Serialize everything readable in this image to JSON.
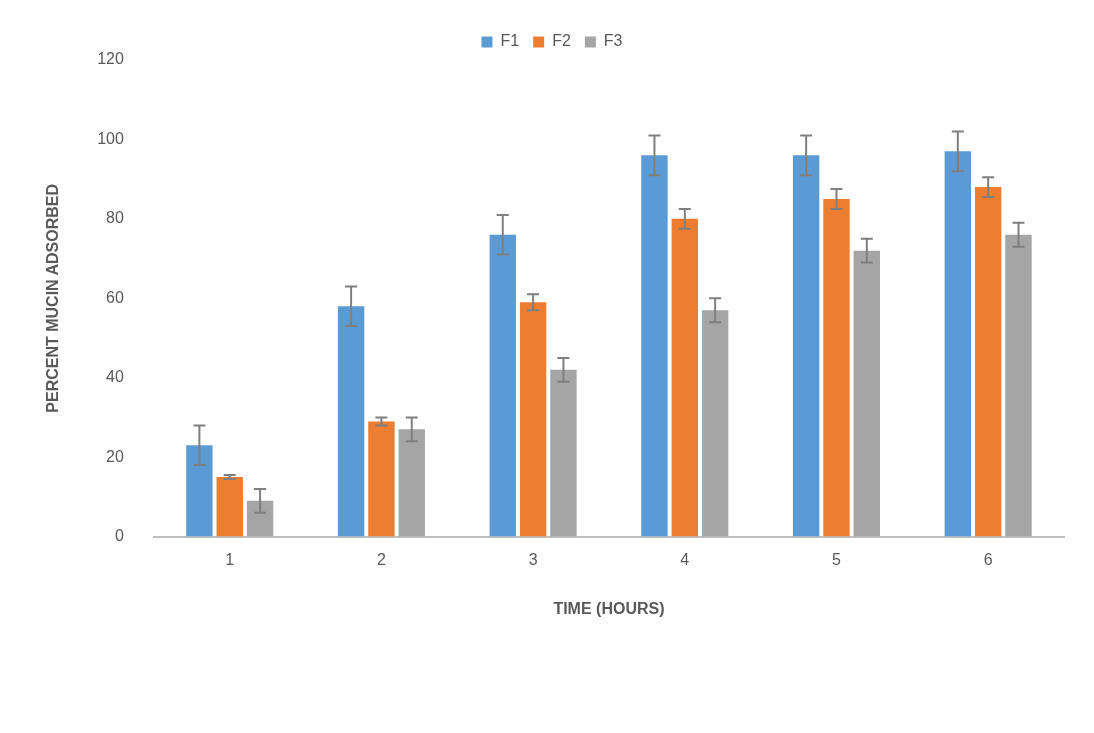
{
  "chart_data": {
    "type": "bar",
    "xlabel": "TIME (HOURS)",
    "ylabel": "PERCENT MUCIN ADSORBED",
    "categories": [
      "1",
      "2",
      "3",
      "4",
      "5",
      "6"
    ],
    "series": [
      {
        "name": "F1",
        "color": "#5b9bd5",
        "values": [
          23,
          58,
          76,
          96,
          96,
          97
        ],
        "errors": [
          5,
          5,
          5,
          5,
          5,
          5
        ]
      },
      {
        "name": "F2",
        "color": "#ed7d31",
        "values": [
          15,
          29,
          59,
          80,
          85,
          88
        ],
        "errors": [
          0.5,
          1,
          2,
          2.5,
          2.5,
          2.5
        ]
      },
      {
        "name": "F3",
        "color": "#a5a5a5",
        "values": [
          9,
          27,
          42,
          57,
          72,
          76
        ],
        "errors": [
          3,
          3,
          3,
          3,
          3,
          3
        ]
      }
    ],
    "ylim": [
      0,
      120
    ],
    "yticks": [
      0,
      20,
      40,
      60,
      80,
      100,
      120
    ],
    "grid": false,
    "legend": "top"
  }
}
